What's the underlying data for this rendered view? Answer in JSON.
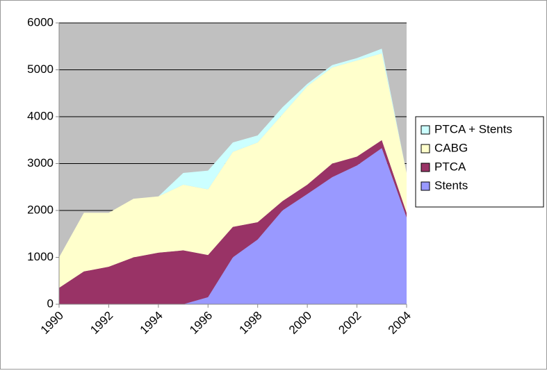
{
  "chart_data": {
    "type": "stacked_area",
    "x": [
      1990,
      1991,
      1992,
      1993,
      1994,
      1995,
      1996,
      1997,
      1998,
      1999,
      2000,
      2001,
      2002,
      2003,
      2004
    ],
    "series": [
      {
        "name": "Stents",
        "color": "#9999ff",
        "values": [
          0,
          0,
          0,
          0,
          0,
          0,
          150,
          1000,
          1380,
          2000,
          2350,
          2710,
          2960,
          3330,
          1850
        ]
      },
      {
        "name": "PTCA",
        "color": "#993366",
        "values": [
          350,
          700,
          800,
          1000,
          1100,
          1150,
          900,
          650,
          370,
          200,
          200,
          290,
          190,
          170,
          100
        ]
      },
      {
        "name": "CABG",
        "color": "#ffffcc",
        "values": [
          650,
          1250,
          1150,
          1250,
          1200,
          1400,
          1400,
          1600,
          1700,
          1850,
          2100,
          2050,
          2050,
          1850,
          850
        ]
      },
      {
        "name": "PTCA + Stents",
        "color": "#ccffff",
        "values": [
          0,
          0,
          0,
          0,
          0,
          250,
          400,
          200,
          150,
          150,
          50,
          50,
          50,
          100,
          0
        ]
      }
    ],
    "xlim": [
      1990,
      2004
    ],
    "xticks": [
      1990,
      1992,
      1994,
      1996,
      1998,
      2000,
      2002,
      2004
    ],
    "ylim": [
      0,
      6000
    ],
    "yticks": [
      0,
      1000,
      2000,
      3000,
      4000,
      5000,
      6000
    ],
    "grid": true,
    "legend": "right",
    "background": "#c0c0c0"
  }
}
